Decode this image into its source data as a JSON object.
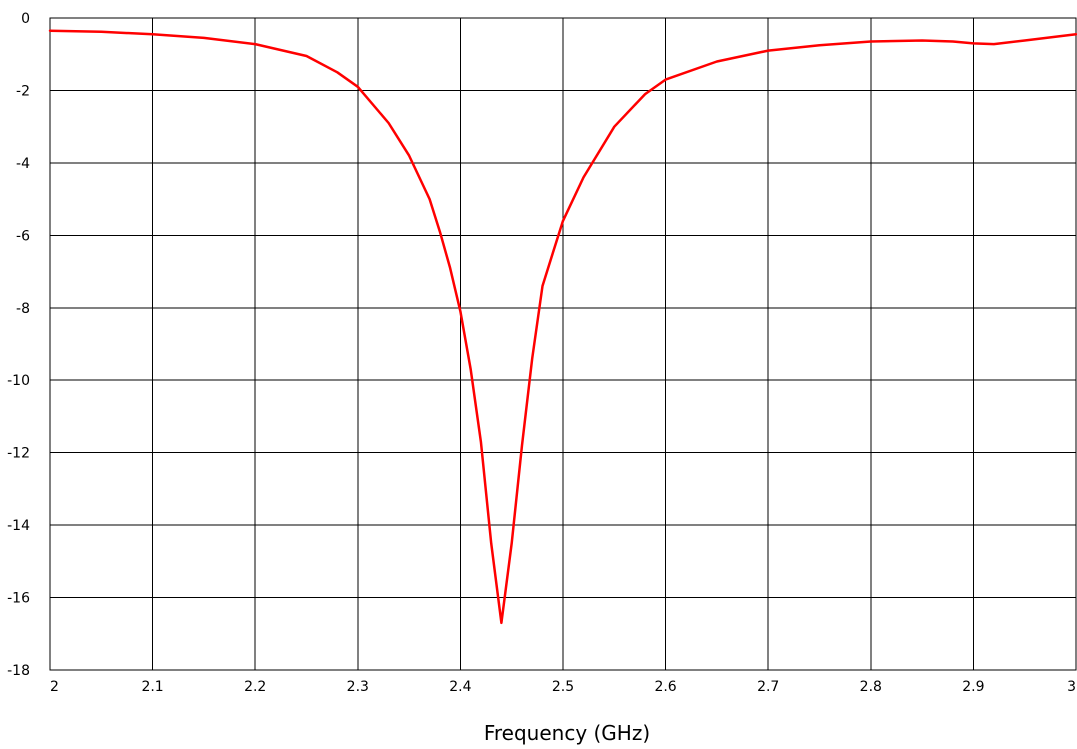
{
  "chart_data": {
    "type": "line",
    "title": "",
    "xlabel": "Frequency (GHz)",
    "ylabel": "",
    "xlim": [
      2,
      3
    ],
    "ylim": [
      -18,
      0
    ],
    "xticks": [
      2,
      2.1,
      2.2,
      2.3,
      2.4,
      2.5,
      2.6,
      2.7,
      2.8,
      2.9,
      3
    ],
    "xtick_labels": [
      "2",
      "2.1",
      "2.2",
      "2.3",
      "2.4",
      "2.5",
      "2.6",
      "2.7",
      "2.8",
      "2.9",
      "3"
    ],
    "yticks": [
      0,
      -2,
      -4,
      -6,
      -8,
      -10,
      -12,
      -14,
      -16,
      -18
    ],
    "ytick_labels": [
      "0",
      "-2",
      "-4",
      "-6",
      "-8",
      "-10",
      "-12",
      "-14",
      "-16",
      "-18"
    ],
    "grid": true,
    "colors": {
      "series": "#ff0000",
      "grid": "#000000"
    },
    "series": [
      {
        "x": [
          2.0,
          2.05,
          2.1,
          2.15,
          2.2,
          2.25,
          2.28,
          2.3,
          2.33,
          2.35,
          2.37,
          2.38,
          2.39,
          2.4,
          2.41,
          2.42,
          2.43,
          2.44,
          2.45,
          2.46,
          2.47,
          2.48,
          2.49,
          2.5,
          2.52,
          2.55,
          2.58,
          2.6,
          2.65,
          2.7,
          2.75,
          2.8,
          2.85,
          2.88,
          2.9,
          2.92,
          2.95,
          3.0
        ],
        "y": [
          -0.35,
          -0.38,
          -0.45,
          -0.55,
          -0.72,
          -1.05,
          -1.5,
          -1.9,
          -2.9,
          -3.8,
          -5.0,
          -5.9,
          -6.9,
          -8.1,
          -9.7,
          -11.7,
          -14.5,
          -16.7,
          -14.5,
          -11.8,
          -9.4,
          -7.4,
          -6.5,
          -5.6,
          -4.4,
          -3.0,
          -2.1,
          -1.7,
          -1.2,
          -0.9,
          -0.75,
          -0.65,
          -0.62,
          -0.65,
          -0.7,
          -0.72,
          -0.62,
          -0.45
        ]
      }
    ]
  }
}
